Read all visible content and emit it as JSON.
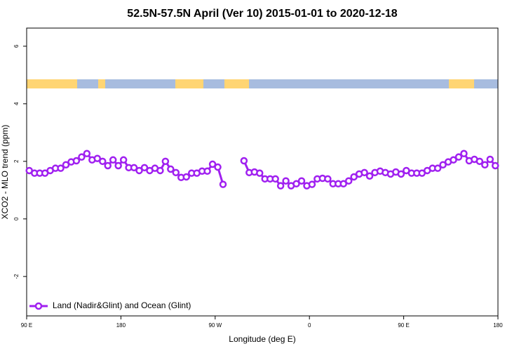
{
  "chart_data": {
    "type": "line",
    "title": "52.5N-57.5N April (Ver 10)   2015-01-01 to 2020-12-18",
    "x_label": "Longitude (deg E)",
    "y_label": "XCO2 - MLO trend (ppm)",
    "xlim": [
      90,
      540
    ],
    "xticks": [
      {
        "value": 90,
        "label": "90 E"
      },
      180,
      {
        "value": 270,
        "label": "90 W"
      },
      {
        "value": 360,
        "label": "0"
      },
      {
        "value": 450,
        "label": "90 E"
      },
      {
        "value": 540,
        "label": "180"
      }
    ],
    "ylim": [
      -3.37,
      6.63
    ],
    "yticks": [
      -2,
      0,
      2,
      4,
      6
    ],
    "legend": "bottom-left",
    "x": [
      92.5,
      97.5,
      102.5,
      107.5,
      112.5,
      117.5,
      122.5,
      127.5,
      132.5,
      137.5,
      142.5,
      147.5,
      152.5,
      157.5,
      162.5,
      167.5,
      172.5,
      177.5,
      182.5,
      187.5,
      192.5,
      197.5,
      202.5,
      207.5,
      212.5,
      217.5,
      222.5,
      227.5,
      232.5,
      237.5,
      242.5,
      247.5,
      252.5,
      257.5,
      262.5,
      267.5,
      272.5,
      277.5,
      282.5,
      287.5,
      292.5,
      297.5,
      302.5,
      307.5,
      312.5,
      317.5,
      322.5,
      327.5,
      332.5,
      337.5,
      342.5,
      347.5,
      352.5,
      357.5,
      362.5,
      367.5,
      372.5,
      377.5,
      382.5,
      387.5,
      392.5,
      397.5,
      402.5,
      407.5,
      412.5,
      417.5,
      422.5,
      427.5,
      432.5,
      437.5,
      442.5,
      447.5,
      452.5,
      457.5,
      462.5,
      467.5,
      472.5,
      477.5,
      482.5,
      487.5,
      492.5,
      497.5,
      502.5,
      507.5,
      512.5,
      517.5,
      522.5,
      527.5,
      532.5,
      537.5
    ],
    "series": [
      {
        "name": "Land (Nadir&Glint) and Ocean (Glint)",
        "color": "#a020f0",
        "values": [
          1.68,
          1.59,
          1.59,
          1.59,
          1.68,
          1.76,
          1.76,
          1.88,
          1.98,
          2.02,
          2.15,
          2.27,
          2.05,
          2.1,
          2.0,
          1.85,
          2.05,
          1.85,
          2.05,
          1.78,
          1.78,
          1.68,
          1.78,
          1.68,
          1.76,
          1.68,
          2.0,
          1.73,
          1.61,
          1.44,
          1.46,
          1.59,
          1.59,
          1.66,
          1.66,
          1.9,
          1.8,
          1.2,
          null,
          null,
          null,
          2.02,
          1.61,
          1.63,
          1.59,
          1.39,
          1.39,
          1.39,
          1.15,
          1.32,
          1.15,
          1.22,
          1.32,
          1.15,
          1.2,
          1.39,
          1.41,
          1.39,
          1.22,
          1.22,
          1.22,
          1.32,
          1.46,
          1.56,
          1.61,
          1.49,
          1.61,
          1.66,
          1.61,
          1.56,
          1.63,
          1.56,
          1.68,
          1.59,
          1.59,
          1.59,
          1.68,
          1.76,
          1.76,
          1.88,
          1.98,
          2.05,
          2.15,
          2.27,
          2.02,
          2.07,
          2.0,
          1.88,
          2.07,
          1.85
        ]
      }
    ]
  }
}
